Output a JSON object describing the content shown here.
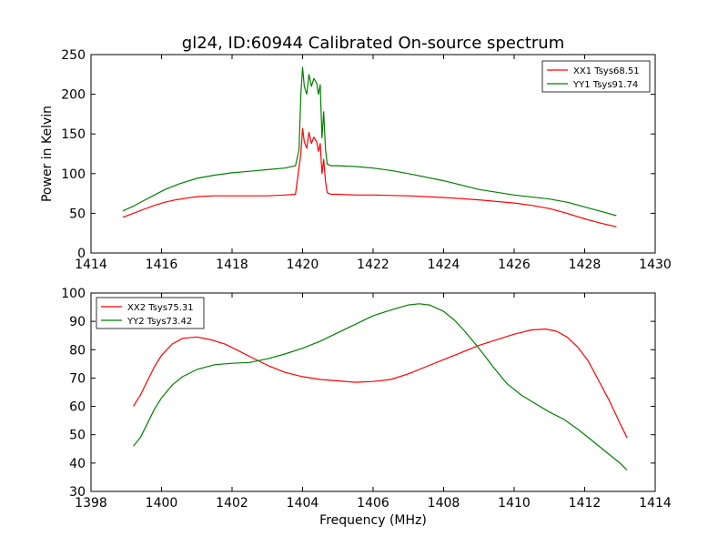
{
  "chart_data": [
    {
      "type": "line",
      "title": "gl24, ID:60944 Calibrated On-source spectrum",
      "xlabel": "",
      "ylabel": "Power in Kelvin",
      "xlim": [
        1414,
        1430
      ],
      "ylim": [
        0,
        250
      ],
      "xticks": [
        "1414",
        "1416",
        "1418",
        "1420",
        "1422",
        "1424",
        "1426",
        "1428",
        "1430"
      ],
      "yticks": [
        "0",
        "50",
        "100",
        "150",
        "200",
        "250"
      ],
      "legend_position": "top-right",
      "grid": false,
      "series": [
        {
          "name": "XX1 Tsys68.51",
          "color": "#ff0000",
          "x": [
            1414.9,
            1415.2,
            1415.5,
            1415.8,
            1416.1,
            1416.4,
            1416.7,
            1417.0,
            1417.5,
            1418.0,
            1418.5,
            1419.0,
            1419.5,
            1419.8,
            1419.95,
            1420.0,
            1420.05,
            1420.12,
            1420.18,
            1420.25,
            1420.32,
            1420.4,
            1420.45,
            1420.5,
            1420.55,
            1420.6,
            1420.65,
            1420.7,
            1420.8,
            1421.0,
            1421.5,
            1422.0,
            1423.0,
            1424.0,
            1425.0,
            1426.0,
            1426.5,
            1427.0,
            1427.5,
            1428.0,
            1428.5,
            1428.9
          ],
          "values": [
            45,
            50,
            55,
            60,
            64,
            67,
            69,
            71,
            72,
            72,
            72,
            72,
            73,
            74,
            125,
            157,
            140,
            132,
            152,
            138,
            146,
            140,
            128,
            138,
            100,
            118,
            90,
            76,
            74,
            74,
            73,
            73,
            72,
            70,
            67,
            63,
            60,
            56,
            50,
            43,
            37,
            33
          ]
        },
        {
          "name": "YY1 Tsys91.74",
          "color": "#008000",
          "x": [
            1414.9,
            1415.2,
            1415.5,
            1415.8,
            1416.1,
            1416.5,
            1417.0,
            1417.5,
            1418.0,
            1418.5,
            1419.0,
            1419.5,
            1419.8,
            1419.9,
            1419.95,
            1420.0,
            1420.05,
            1420.12,
            1420.18,
            1420.25,
            1420.32,
            1420.4,
            1420.45,
            1420.5,
            1420.55,
            1420.6,
            1420.65,
            1420.7,
            1420.8,
            1421.0,
            1421.5,
            1422.0,
            1422.5,
            1423.0,
            1424.0,
            1425.0,
            1426.0,
            1427.0,
            1427.5,
            1428.0,
            1428.5,
            1428.9
          ],
          "values": [
            53,
            59,
            66,
            73,
            80,
            87,
            94,
            98,
            101,
            103,
            105,
            107,
            110,
            130,
            200,
            234,
            210,
            200,
            225,
            210,
            220,
            214,
            200,
            212,
            145,
            178,
            130,
            112,
            110,
            110,
            109,
            107,
            104,
            100,
            91,
            80,
            73,
            68,
            64,
            58,
            52,
            47
          ]
        }
      ]
    },
    {
      "type": "line",
      "title": "",
      "xlabel": "Frequency (MHz)",
      "ylabel": "",
      "xlim": [
        1398,
        1414
      ],
      "ylim": [
        30,
        100
      ],
      "xticks": [
        "1398",
        "1400",
        "1402",
        "1404",
        "1406",
        "1408",
        "1410",
        "1412",
        "1414"
      ],
      "yticks": [
        "30",
        "40",
        "50",
        "60",
        "70",
        "80",
        "90",
        "100"
      ],
      "legend_position": "top-left",
      "grid": false,
      "series": [
        {
          "name": "XX2 Tsys75.31",
          "color": "#ff0000",
          "x": [
            1399.2,
            1399.4,
            1399.6,
            1399.8,
            1400.0,
            1400.3,
            1400.6,
            1401.0,
            1401.4,
            1401.8,
            1402.2,
            1402.6,
            1403.0,
            1403.5,
            1404.0,
            1404.5,
            1405.0,
            1405.5,
            1406.0,
            1406.5,
            1407.0,
            1407.5,
            1408.0,
            1408.5,
            1409.0,
            1409.5,
            1410.0,
            1410.5,
            1410.9,
            1411.2,
            1411.5,
            1411.8,
            1412.1,
            1412.4,
            1412.7,
            1413.0,
            1413.2
          ],
          "values": [
            60,
            64,
            69,
            74,
            78,
            82,
            84,
            84.5,
            83.5,
            82,
            79.5,
            77,
            74.5,
            72,
            70.5,
            69.5,
            69,
            68.5,
            68.8,
            69.5,
            71.5,
            74,
            76.5,
            79,
            81.5,
            83.5,
            85.5,
            87,
            87.3,
            86.5,
            84.5,
            81,
            76,
            69,
            62,
            54,
            49
          ]
        },
        {
          "name": "YY2 Tsys73.42",
          "color": "#008000",
          "x": [
            1399.2,
            1399.4,
            1399.6,
            1399.8,
            1400.0,
            1400.3,
            1400.6,
            1401.0,
            1401.5,
            1402.0,
            1402.5,
            1403.0,
            1403.5,
            1404.0,
            1404.5,
            1405.0,
            1405.5,
            1406.0,
            1406.5,
            1407.0,
            1407.3,
            1407.6,
            1408.0,
            1408.3,
            1408.6,
            1409.0,
            1409.4,
            1409.8,
            1410.2,
            1410.6,
            1411.0,
            1411.4,
            1411.8,
            1412.2,
            1412.6,
            1413.0,
            1413.2
          ],
          "values": [
            46,
            49,
            54,
            59,
            63,
            67.5,
            70.5,
            73,
            74.7,
            75.2,
            75.5,
            76.8,
            78.5,
            80.5,
            83,
            86,
            89,
            92,
            94,
            95.8,
            96.2,
            95.8,
            93.5,
            90.5,
            86.5,
            80.5,
            74,
            68,
            64,
            61,
            58,
            55.5,
            52,
            48,
            44,
            40,
            37.5
          ]
        }
      ]
    }
  ]
}
